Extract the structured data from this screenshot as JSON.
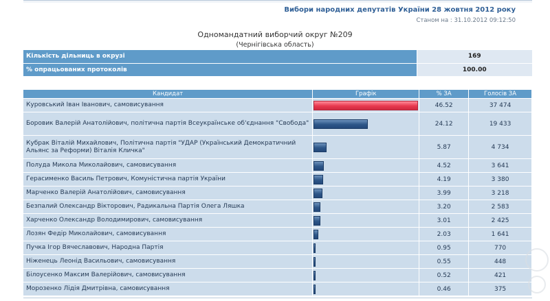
{
  "header": {
    "election_title": "Вибори народних депутатів України 28 жовтня 2012 року",
    "status": "Станом на : 31.10.2012 09:12:50"
  },
  "district": {
    "title": "Одномандатний виборчий округ №209",
    "region": "(Чернігівська область)"
  },
  "summary": [
    {
      "label": "Кількість дільниць в окрузі",
      "value": "169"
    },
    {
      "label": "% опрацьованих протоколів",
      "value": "100.00"
    }
  ],
  "colors": {
    "header_blue": "#5f9bc9",
    "row_bg": "#ccdceb",
    "bar_blue": "#2d5688",
    "bar_leader": "#e8384e"
  },
  "table": {
    "columns": [
      "Кандидат",
      "Графік",
      "% ЗА",
      "Голосів ЗА"
    ],
    "rows": [
      {
        "name": "Куровський Іван Іванович, самовисування",
        "pct": "46.52",
        "pct_value": 46.52,
        "votes": "37 474",
        "leader": true
      },
      {
        "name": "Боровик Валерій Анатолійович, політична партія Всеукраїнське об'єднання \"Свобода\"",
        "pct": "24.12",
        "pct_value": 24.12,
        "votes": "19 433"
      },
      {
        "name": "Кубрак Віталій Михайлович, Політична партія \"УДАР (Український Демократичний Альянс за Реформи) Віталія Кличка\"",
        "pct": "5.87",
        "pct_value": 5.87,
        "votes": "4 734"
      },
      {
        "name": "Полуда Микола Миколайович, самовисування",
        "pct": "4.52",
        "pct_value": 4.52,
        "votes": "3 641"
      },
      {
        "name": "Герасименко Василь Петрович, Комуністична партія України",
        "pct": "4.19",
        "pct_value": 4.19,
        "votes": "3 380"
      },
      {
        "name": "Марченко Валерій Анатолійович, самовисування",
        "pct": "3.99",
        "pct_value": 3.99,
        "votes": "3 218"
      },
      {
        "name": "Безпалий Олександр Вікторович, Радикальна Партія Олега Ляшка",
        "pct": "3.20",
        "pct_value": 3.2,
        "votes": "2 583"
      },
      {
        "name": "Харченко Олександр Володимирович, самовисування",
        "pct": "3.01",
        "pct_value": 3.01,
        "votes": "2 425"
      },
      {
        "name": "Лозян Федір Миколайович, самовисування",
        "pct": "2.03",
        "pct_value": 2.03,
        "votes": "1 641"
      },
      {
        "name": "Пучка Ігор Вячеславович, Народна Партія",
        "pct": "0.95",
        "pct_value": 0.95,
        "votes": "770"
      },
      {
        "name": "Ніженець Леонід Васильович, самовисування",
        "pct": "0.55",
        "pct_value": 0.55,
        "votes": "448"
      },
      {
        "name": "Білоусенко Максим Валерійович, самовисування",
        "pct": "0.52",
        "pct_value": 0.52,
        "votes": "421"
      },
      {
        "name": "Морозенко Лідія Дмитрівна, самовисування",
        "pct": "0.46",
        "pct_value": 0.46,
        "votes": "375"
      }
    ]
  }
}
